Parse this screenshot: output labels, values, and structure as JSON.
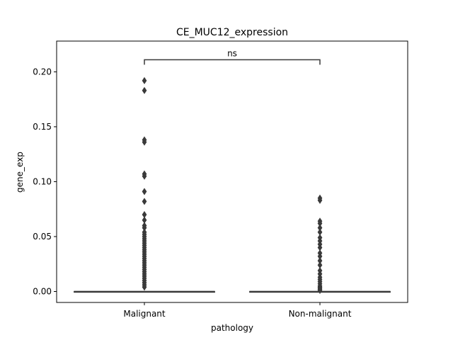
{
  "chart_data": {
    "type": "box",
    "title": "CE_MUC12_expression",
    "xlabel": "pathology",
    "ylabel": "gene_exp",
    "ylim": [
      -0.01,
      0.228
    ],
    "yticks": [
      0.0,
      0.05,
      0.1,
      0.15,
      0.2
    ],
    "ytick_labels": [
      "0.00",
      "0.05",
      "0.10",
      "0.15",
      "0.20"
    ],
    "categories": [
      "Malignant",
      "Non-malignant"
    ],
    "box_color": "#3a3a3a",
    "boxes": [
      {
        "name": "Malignant",
        "q1": 0.0,
        "median": 0.0,
        "q3": 0.0,
        "whisker_low": 0.0,
        "whisker_high": 0.0,
        "outliers": [
          0.192,
          0.183,
          0.138,
          0.136,
          0.107,
          0.105,
          0.091,
          0.082,
          0.07,
          0.065,
          0.06,
          0.058,
          0.054,
          0.052,
          0.05,
          0.048,
          0.046,
          0.044,
          0.042,
          0.04,
          0.038,
          0.036,
          0.034,
          0.032,
          0.03,
          0.028,
          0.026,
          0.024,
          0.022,
          0.02,
          0.018,
          0.016,
          0.014,
          0.012,
          0.01,
          0.008,
          0.006,
          0.004
        ]
      },
      {
        "name": "Non-malignant",
        "q1": 0.0,
        "median": 0.0,
        "q3": 0.0,
        "whisker_low": 0.0,
        "whisker_high": 0.0,
        "outliers": [
          0.085,
          0.083,
          0.064,
          0.062,
          0.058,
          0.054,
          0.049,
          0.046,
          0.043,
          0.04,
          0.035,
          0.032,
          0.028,
          0.024,
          0.019,
          0.016,
          0.013,
          0.011,
          0.009,
          0.007,
          0.005,
          0.004,
          0.003,
          0.002,
          0.001
        ]
      }
    ],
    "annotation": {
      "text": "ns",
      "y": 0.211,
      "between": [
        "Malignant",
        "Non-malignant"
      ]
    }
  }
}
